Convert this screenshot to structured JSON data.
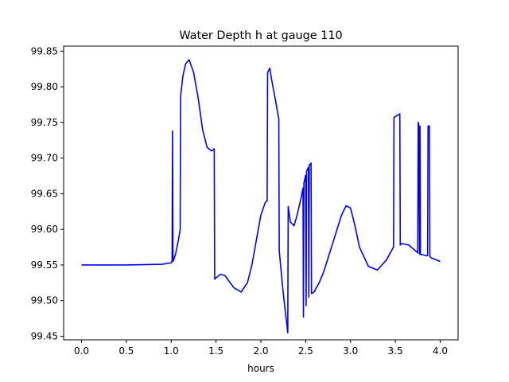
{
  "chart_data": {
    "type": "line",
    "title": "Water Depth h at gauge 110",
    "xlabel": "hours",
    "ylabel": "",
    "xlim": [
      -0.2,
      4.2
    ],
    "ylim": [
      99.445,
      99.857
    ],
    "xticks": [
      0.0,
      0.5,
      1.0,
      1.5,
      2.0,
      2.5,
      3.0,
      3.5,
      4.0
    ],
    "xtick_labels": [
      "0.0",
      "0.5",
      "1.0",
      "1.5",
      "2.0",
      "2.5",
      "3.0",
      "3.5",
      "4.0"
    ],
    "yticks": [
      99.45,
      99.5,
      99.55,
      99.6,
      99.65,
      99.7,
      99.75,
      99.8,
      99.85
    ],
    "ytick_labels": [
      "99.45",
      "99.50",
      "99.55",
      "99.60",
      "99.65",
      "99.70",
      "99.75",
      "99.80",
      "99.85"
    ],
    "grid": false,
    "color": "#0000ff",
    "series": [
      {
        "x": [
          0.0,
          0.5,
          0.9,
          1.0,
          1.01,
          1.015,
          1.02,
          1.03,
          1.05,
          1.08,
          1.1,
          1.105,
          1.13,
          1.16,
          1.2,
          1.25,
          1.3,
          1.35,
          1.4,
          1.45,
          1.48,
          1.485,
          1.5,
          1.55,
          1.6,
          1.7,
          1.78,
          1.85,
          1.9,
          1.95,
          2.0,
          2.05,
          2.07,
          2.075,
          2.1,
          2.12,
          2.15,
          2.2,
          2.205,
          2.25,
          2.3,
          2.305,
          2.33,
          2.37,
          2.4,
          2.45,
          2.47,
          2.475,
          2.48,
          2.5,
          2.505,
          2.51,
          2.53,
          2.535,
          2.54,
          2.56,
          2.565,
          2.57,
          2.6,
          2.605,
          2.65,
          2.7,
          2.8,
          2.9,
          2.95,
          3.0,
          3.05,
          3.1,
          3.2,
          3.3,
          3.4,
          3.47,
          3.48,
          3.485,
          3.55,
          3.555,
          3.57,
          3.65,
          3.75,
          3.755,
          3.76,
          3.77,
          3.775,
          3.78,
          3.85,
          3.86,
          3.865,
          3.88,
          3.885,
          3.9,
          4.0
        ],
        "y": [
          99.55,
          99.55,
          99.551,
          99.553,
          99.556,
          99.738,
          99.555,
          99.558,
          99.566,
          99.585,
          99.6,
          99.787,
          99.815,
          99.832,
          99.838,
          99.82,
          99.785,
          99.74,
          99.715,
          99.71,
          99.713,
          99.53,
          99.532,
          99.537,
          99.535,
          99.518,
          99.512,
          99.525,
          99.55,
          99.585,
          99.62,
          99.638,
          99.64,
          99.82,
          99.826,
          99.81,
          99.79,
          99.755,
          99.57,
          99.51,
          99.455,
          99.632,
          99.61,
          99.605,
          99.618,
          99.645,
          99.658,
          99.477,
          99.665,
          99.676,
          99.493,
          99.682,
          99.687,
          99.505,
          99.69,
          99.693,
          99.51,
          99.51,
          99.513,
          99.515,
          99.525,
          99.54,
          99.58,
          99.62,
          99.633,
          99.63,
          99.605,
          99.575,
          99.548,
          99.543,
          99.557,
          99.573,
          99.575,
          99.757,
          99.762,
          99.578,
          99.58,
          99.578,
          99.567,
          99.75,
          99.748,
          99.565,
          99.745,
          99.565,
          99.563,
          99.563,
          99.745,
          99.745,
          99.562,
          99.56,
          99.555
        ]
      }
    ]
  }
}
